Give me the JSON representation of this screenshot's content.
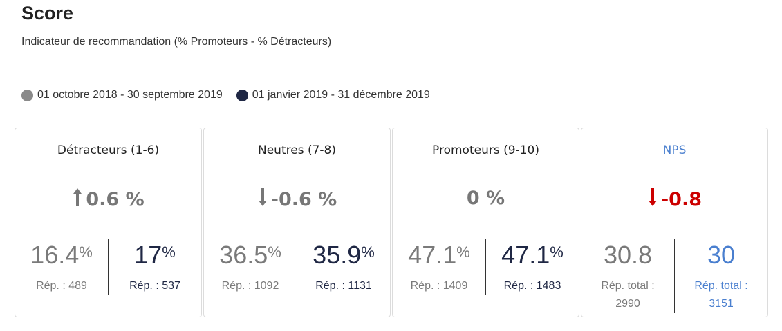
{
  "header": {
    "title": "Score",
    "subtitle": "Indicateur de recommandation (% Promoteurs - % Détracteurs)"
  },
  "legend": {
    "period1": {
      "label": "01 octobre 2018 - 30 septembre 2019",
      "color": "#8a8a8a"
    },
    "period2": {
      "label": "01 janvier 2019 - 31 décembre 2019",
      "color": "#1f2744"
    }
  },
  "cards": {
    "detracteurs": {
      "title": "Détracteurs (1-6)",
      "delta": "0.6 %",
      "arrow": "up",
      "prev_value": "16.4",
      "prev_unit": "%",
      "prev_rep": "Rép. : 489",
      "cur_value": "17",
      "cur_unit": "%",
      "cur_rep": "Rép. : 537"
    },
    "neutres": {
      "title": "Neutres (7-8)",
      "delta": "-0.6 %",
      "arrow": "down",
      "prev_value": "36.5",
      "prev_unit": "%",
      "prev_rep": "Rép. : 1092",
      "cur_value": "35.9",
      "cur_unit": "%",
      "cur_rep": "Rép. : 1131"
    },
    "promoteurs": {
      "title": "Promoteurs (9-10)",
      "delta": "0 %",
      "prev_value": "47.1",
      "prev_unit": "%",
      "prev_rep": "Rép. : 1409",
      "cur_value": "47.1",
      "cur_unit": "%",
      "cur_rep": "Rép. : 1483"
    },
    "nps": {
      "title": "NPS",
      "delta": "-0.8",
      "arrow": "down",
      "prev_value": "30.8",
      "prev_rep_line1": "Rép. total :",
      "prev_rep_line2": "2990",
      "cur_value": "30",
      "cur_rep_line1": "Rép. total :",
      "cur_rep_line2": "3151"
    }
  }
}
